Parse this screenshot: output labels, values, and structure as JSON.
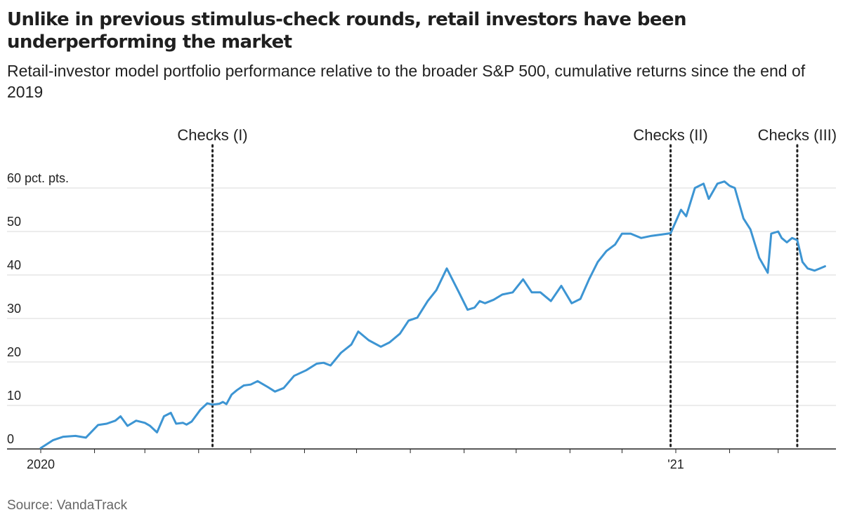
{
  "title": "Unlike in previous stimulus-check rounds, retail investors have been underperforming the market",
  "subtitle": "Retail-investor model portfolio performance relative to the broader S&P 500, cumulative returns since the end of 2019",
  "source": "Source: VandaTrack",
  "colors": {
    "line": "#3d95d3",
    "grid": "#d9d9d9",
    "axis": "#222222"
  },
  "chart_data": {
    "type": "line",
    "title": "Unlike in previous stimulus-check rounds, retail investors have been underperforming the market",
    "subtitle": "Retail-investor model portfolio performance relative to the broader S&P 500, cumulative returns since the end of 2019",
    "xlabel": "",
    "ylabel": "",
    "xlim": [
      "2020-01-01",
      "2021-03-31"
    ],
    "ylim": [
      0,
      60
    ],
    "yticks": [
      {
        "value": 0,
        "label": "0"
      },
      {
        "value": 10,
        "label": "10"
      },
      {
        "value": 20,
        "label": "20"
      },
      {
        "value": 30,
        "label": "30"
      },
      {
        "value": 40,
        "label": "40"
      },
      {
        "value": 50,
        "label": "50"
      },
      {
        "value": 60,
        "label": "60 pct. pts."
      }
    ],
    "xtick_labels": [
      {
        "date": "2020-01-01",
        "label": "2020"
      },
      {
        "date": "2021-01-01",
        "label": "'21"
      }
    ],
    "month_ticks": [
      "2020-01-01",
      "2020-02-01",
      "2020-03-01",
      "2020-04-01",
      "2020-05-01",
      "2020-06-01",
      "2020-07-01",
      "2020-08-01",
      "2020-09-01",
      "2020-10-01",
      "2020-11-01",
      "2020-12-01",
      "2021-01-01",
      "2021-02-01",
      "2021-03-01"
    ],
    "grid": true,
    "annotations": [
      {
        "date": "2020-04-09",
        "label": "Checks (I)"
      },
      {
        "date": "2020-12-29",
        "label": "Checks (II)"
      },
      {
        "date": "2021-03-12",
        "label": "Checks (III)"
      }
    ],
    "series": [
      {
        "name": "",
        "x": [
          "2020-01-01",
          "2020-01-08",
          "2020-01-14",
          "2020-01-21",
          "2020-01-27",
          "2020-02-03",
          "2020-02-08",
          "2020-02-13",
          "2020-02-16",
          "2020-02-20",
          "2020-02-25",
          "2020-03-01",
          "2020-03-04",
          "2020-03-08",
          "2020-03-12",
          "2020-03-16",
          "2020-03-19",
          "2020-03-23",
          "2020-03-25",
          "2020-03-28",
          "2020-04-02",
          "2020-04-06",
          "2020-04-09",
          "2020-04-13",
          "2020-04-15",
          "2020-04-17",
          "2020-04-20",
          "2020-04-23",
          "2020-04-27",
          "2020-05-01",
          "2020-05-05",
          "2020-05-11",
          "2020-05-15",
          "2020-05-20",
          "2020-05-26",
          "2020-06-02",
          "2020-06-08",
          "2020-06-12",
          "2020-06-16",
          "2020-06-22",
          "2020-06-28",
          "2020-07-02",
          "2020-07-08",
          "2020-07-15",
          "2020-07-20",
          "2020-07-26",
          "2020-07-31",
          "2020-08-05",
          "2020-08-11",
          "2020-08-16",
          "2020-08-22",
          "2020-08-29",
          "2020-09-03",
          "2020-09-07",
          "2020-09-10",
          "2020-09-13",
          "2020-09-18",
          "2020-09-23",
          "2020-09-29",
          "2020-10-05",
          "2020-10-10",
          "2020-10-15",
          "2020-10-21",
          "2020-10-27",
          "2020-11-02",
          "2020-11-07",
          "2020-11-12",
          "2020-11-17",
          "2020-11-22",
          "2020-11-27",
          "2020-12-01",
          "2020-12-06",
          "2020-12-12",
          "2020-12-18",
          "2020-12-24",
          "2020-12-29",
          "2021-01-04",
          "2021-01-07",
          "2021-01-12",
          "2021-01-17",
          "2021-01-20",
          "2021-01-25",
          "2021-01-29",
          "2021-02-01",
          "2021-02-04",
          "2021-02-09",
          "2021-02-13",
          "2021-02-18",
          "2021-02-23",
          "2021-02-25",
          "2021-03-01",
          "2021-03-03",
          "2021-03-06",
          "2021-03-09",
          "2021-03-12",
          "2021-03-15",
          "2021-03-18",
          "2021-03-22",
          "2021-03-25",
          "2021-03-28"
        ],
        "values": [
          0.2,
          2,
          2.8,
          3.0,
          2.6,
          5.5,
          5.8,
          6.5,
          7.5,
          5.3,
          6.5,
          6.0,
          5.3,
          3.8,
          7.5,
          8.3,
          5.8,
          6.0,
          5.6,
          6.3,
          9.0,
          10.5,
          10.2,
          10.4,
          10.8,
          10.3,
          12.5,
          13.5,
          14.6,
          14.8,
          15.6,
          14.2,
          13.2,
          14.0,
          16.8,
          18.1,
          19.6,
          19.8,
          19.2,
          22.1,
          24.0,
          27.0,
          25.0,
          23.5,
          24.5,
          26.5,
          29.5,
          30.2,
          34.0,
          36.5,
          41.5,
          36.0,
          32.0,
          32.5,
          34.0,
          33.5,
          34.3,
          35.5,
          36.0,
          39.0,
          36.0,
          36.0,
          34.0,
          37.5,
          33.5,
          34.5,
          39.0,
          43.0,
          45.5,
          47.0,
          49.5,
          49.5,
          48.5,
          49.0,
          49.3,
          49.6,
          55.0,
          53.5,
          60.0,
          61.0,
          57.5,
          61.0,
          61.5,
          60.5,
          60.0,
          53.0,
          50.5,
          44.0,
          40.5,
          49.5,
          50.0,
          48.5,
          47.5,
          48.5,
          48.0,
          43.0,
          41.5,
          41.0,
          41.5,
          42.0
        ]
      }
    ]
  }
}
